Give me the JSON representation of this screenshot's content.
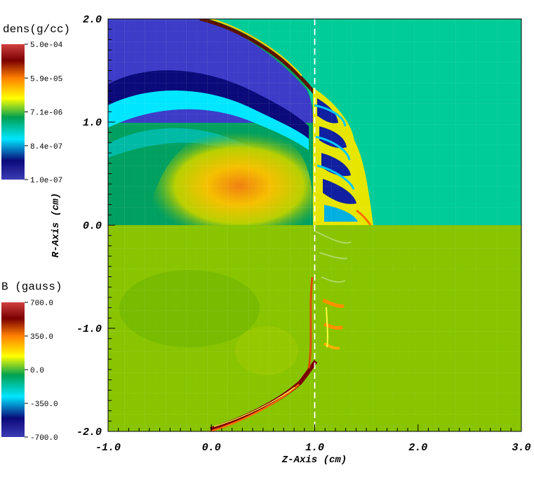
{
  "chart_data": {
    "type": "heatmap",
    "xlabel": "Z-Axis (cm)",
    "ylabel": "R-Axis (cm)",
    "xlim": [
      -1.0,
      3.0
    ],
    "ylim": [
      -2.0,
      2.0
    ],
    "x_ticks": [
      -1.0,
      0.0,
      1.0,
      2.0,
      3.0
    ],
    "y_ticks": [
      -2.0,
      -1.0,
      0.0,
      1.0,
      2.0
    ],
    "x_tick_labels": [
      "-1.0",
      "0.0",
      "1.0",
      "2.0",
      "3.0"
    ],
    "y_tick_labels": [
      "-2.0",
      "-1.0",
      "0.0",
      "1.0",
      "2.0"
    ],
    "guide_line_z": 1.0,
    "panels": [
      {
        "name": "dens",
        "title": "dens(g/cc)",
        "region": "upper half (R > 0)",
        "scale": "log",
        "range": [
          1e-07,
          0.0005
        ],
        "colorbar_labels": [
          "5.0e-04",
          "5.9e-05",
          "7.1e-06",
          "8.4e-07",
          "1.0e-07"
        ],
        "background_value": "~2e-6"
      },
      {
        "name": "B",
        "title": "B (gauss)",
        "region": "lower half (R < 0)",
        "scale": "linear",
        "range": [
          -700.0,
          700.0
        ],
        "colorbar_labels": [
          "700.0",
          "350.0",
          "0.0",
          "-350.0",
          "-700.0"
        ],
        "background_value": "~0"
      }
    ],
    "grid": true,
    "grid_style": "faint AMR block mesh"
  },
  "colors": {
    "colormap": [
      "#3c3cb4",
      "#0a0a7a",
      "#00e6ff",
      "#00a050",
      "#ffff00",
      "#ff8000",
      "#7a0000",
      "#d04040"
    ],
    "dens_background": "#00cc99",
    "b_background": "#88c400",
    "cavity": "#3c3cc8",
    "guide_line": "#ffffff"
  }
}
